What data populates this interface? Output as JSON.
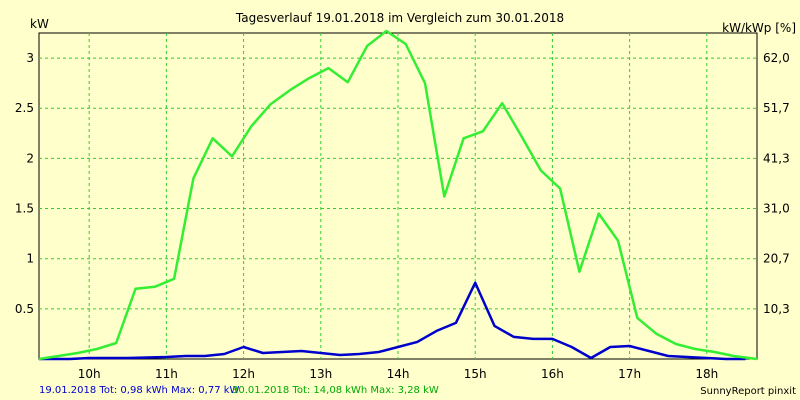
{
  "chart_data": {
    "type": "line",
    "title": "Tagesverlauf 19.01.2018 im Vergleich zum 30.01.2018",
    "ylabel_left": "kW",
    "ylabel_right": "kW/kWp [%]",
    "x_ticks": [
      "10h",
      "11h",
      "12h",
      "13h",
      "14h",
      "15h",
      "16h",
      "17h",
      "18h"
    ],
    "y_ticks": [
      "0.5",
      "1",
      "1.5",
      "2",
      "2.5",
      "3"
    ],
    "y_ticks_right": [
      "10,3",
      "20,7",
      "31,0",
      "41,3",
      "51,7",
      "62,0"
    ],
    "xlim": [
      9.35,
      18.65
    ],
    "ylim": [
      0,
      3.25
    ],
    "grid": true,
    "series": [
      {
        "name": "19.01.2018",
        "color": "#0000cc",
        "x": [
          9.35,
          9.75,
          10.0,
          10.5,
          11.0,
          11.25,
          11.5,
          11.75,
          12.0,
          12.25,
          12.5,
          12.75,
          13.0,
          13.25,
          13.5,
          13.75,
          14.0,
          14.25,
          14.5,
          14.75,
          15.0,
          15.25,
          15.5,
          15.75,
          16.0,
          16.25,
          16.5,
          16.75,
          17.0,
          17.25,
          17.5,
          17.75,
          18.0,
          18.25,
          18.5
        ],
        "y": [
          0.0,
          0.0,
          0.01,
          0.01,
          0.02,
          0.03,
          0.03,
          0.05,
          0.12,
          0.06,
          0.07,
          0.08,
          0.06,
          0.04,
          0.05,
          0.07,
          0.12,
          0.17,
          0.28,
          0.36,
          0.76,
          0.33,
          0.22,
          0.2,
          0.2,
          0.12,
          0.01,
          0.12,
          0.13,
          0.08,
          0.03,
          0.02,
          0.01,
          0.0,
          0.0
        ]
      },
      {
        "name": "30.01.2018",
        "color": "#33ee33",
        "x": [
          9.35,
          9.6,
          9.85,
          10.1,
          10.35,
          10.6,
          10.85,
          11.1,
          11.35,
          11.6,
          11.85,
          12.1,
          12.35,
          12.6,
          12.85,
          13.1,
          13.35,
          13.6,
          13.85,
          14.1,
          14.35,
          14.6,
          14.85,
          15.1,
          15.35,
          15.6,
          15.85,
          16.1,
          16.35,
          16.6,
          16.85,
          17.1,
          17.35,
          17.6,
          17.85,
          18.1,
          18.35,
          18.65
        ],
        "y": [
          0.0,
          0.03,
          0.06,
          0.1,
          0.16,
          0.7,
          0.72,
          0.8,
          1.8,
          2.2,
          2.02,
          2.32,
          2.54,
          2.68,
          2.8,
          2.9,
          2.76,
          3.12,
          3.27,
          3.14,
          2.75,
          1.62,
          2.2,
          2.27,
          2.55,
          2.22,
          1.88,
          1.7,
          0.87,
          1.45,
          1.18,
          0.41,
          0.25,
          0.15,
          0.1,
          0.07,
          0.03,
          0.0
        ]
      }
    ]
  },
  "footer": {
    "series1": "19.01.2018 Tot: 0,98 kWh Max: 0,77 kW",
    "series2": "30.01.2018 Tot: 14,08 kWh Max: 3,28 kW",
    "brand": "SunnyReport pinxit"
  }
}
